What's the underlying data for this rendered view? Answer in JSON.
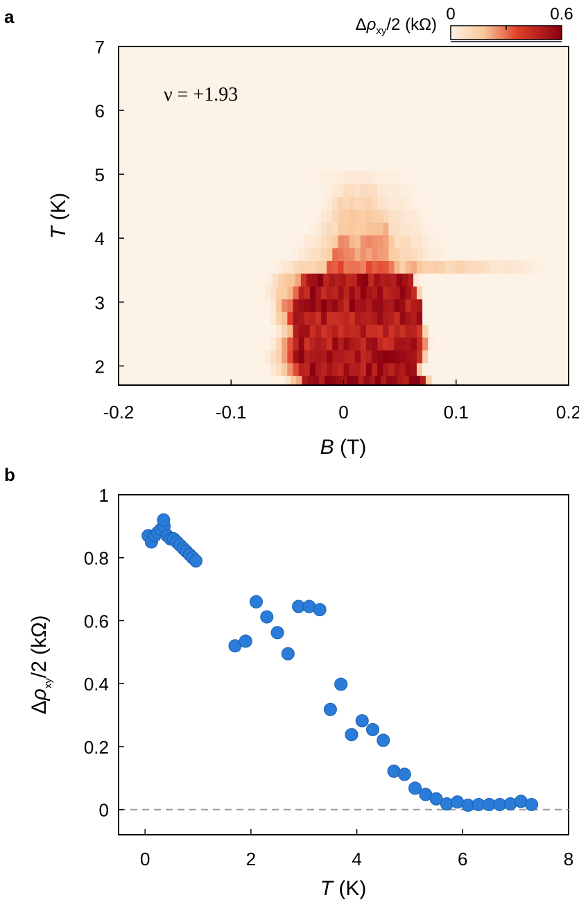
{
  "panel_a": {
    "label": "a"
  },
  "panel_b": {
    "label": "b"
  },
  "colors": {
    "heat_low": "#fdf2e6",
    "heat_mid": "#e0402a",
    "heat_high": "#8a0010",
    "marker": "#2b7bd8",
    "marker_edge": "#1a5fb0",
    "zero_line": "#999999"
  },
  "chart_data": [
    {
      "type": "heatmap",
      "panel": "a",
      "annotation": "ν = +1.93",
      "xlabel_italic": "B",
      "xlabel_unit": "(T)",
      "ylabel_italic": "T",
      "ylabel_unit": "(K)",
      "xlim": [
        -0.2,
        0.2
      ],
      "ylim": [
        1.7,
        7
      ],
      "xticks": [
        -0.2,
        -0.1,
        0,
        0.1,
        0.2
      ],
      "xtick_labels": [
        "-0.2",
        "-0.1",
        "0",
        "0.1",
        "0.2"
      ],
      "yticks": [
        2,
        3,
        4,
        5,
        6,
        7
      ],
      "ytick_labels": [
        "2",
        "3",
        "4",
        "5",
        "6",
        "7"
      ],
      "colorbar": {
        "label_prefix": "Δ",
        "label_symbol": "ρ",
        "label_sub": "xy",
        "label_suffix": "/2 (kΩ)",
        "min": 0,
        "max": 0.6,
        "min_label": "0",
        "max_label": "0.6"
      },
      "rows": [
        {
          "T": 1.75,
          "xmin": -0.052,
          "xmax": 0.078,
          "inner_min": -0.035,
          "inner_max": 0.072,
          "v": 0.55
        },
        {
          "T": 1.95,
          "xmin": -0.065,
          "xmax": 0.072,
          "inner_min": -0.04,
          "inner_max": 0.065,
          "v": 0.5
        },
        {
          "T": 2.15,
          "xmin": -0.07,
          "xmax": 0.075,
          "inner_min": -0.045,
          "inner_max": 0.07,
          "v": 0.5
        },
        {
          "T": 2.35,
          "xmin": -0.065,
          "xmax": 0.078,
          "inner_min": -0.045,
          "inner_max": 0.07,
          "v": 0.48
        },
        {
          "T": 2.55,
          "xmin": -0.06,
          "xmax": 0.075,
          "inner_min": -0.045,
          "inner_max": 0.068,
          "v": 0.47
        },
        {
          "T": 2.75,
          "xmin": -0.065,
          "xmax": 0.072,
          "inner_min": -0.045,
          "inner_max": 0.07,
          "v": 0.48
        },
        {
          "T": 2.95,
          "xmin": -0.065,
          "xmax": 0.072,
          "inner_min": -0.045,
          "inner_max": 0.07,
          "v": 0.5
        },
        {
          "T": 3.15,
          "xmin": -0.07,
          "xmax": 0.07,
          "inner_min": -0.038,
          "inner_max": 0.065,
          "v": 0.5
        },
        {
          "T": 3.35,
          "xmin": -0.068,
          "xmax": 0.065,
          "inner_min": -0.035,
          "inner_max": 0.06,
          "v": 0.52
        },
        {
          "T": 3.55,
          "xmin": -0.06,
          "xmax": 0.18,
          "inner_min": -0.015,
          "inner_max": 0.045,
          "v": 0.3
        },
        {
          "T": 3.75,
          "xmin": -0.045,
          "xmax": 0.09,
          "inner_min": -0.01,
          "inner_max": 0.04,
          "v": 0.25
        },
        {
          "T": 3.95,
          "xmin": -0.04,
          "xmax": 0.085,
          "inner_min": -0.005,
          "inner_max": 0.04,
          "v": 0.22
        },
        {
          "T": 4.15,
          "xmin": -0.03,
          "xmax": 0.08,
          "inner_min": -0.005,
          "inner_max": 0.04,
          "v": 0.18
        },
        {
          "T": 4.35,
          "xmin": -0.025,
          "xmax": 0.075,
          "inner_min": -0.005,
          "inner_max": 0.035,
          "v": 0.15
        },
        {
          "T": 4.55,
          "xmin": -0.02,
          "xmax": 0.07,
          "inner_min": -0.005,
          "inner_max": 0.03,
          "v": 0.12
        },
        {
          "T": 4.75,
          "xmin": -0.02,
          "xmax": 0.065,
          "inner_min": 0.0,
          "inner_max": 0.03,
          "v": 0.08
        },
        {
          "T": 4.95,
          "xmin": -0.03,
          "xmax": 0.06,
          "inner_min": 0.0,
          "inner_max": 0.025,
          "v": 0.04
        }
      ]
    },
    {
      "type": "scatter",
      "panel": "b",
      "xlabel_italic": "T",
      "xlabel_unit": "(K)",
      "ylabel_prefix": "Δ",
      "ylabel_symbol": "ρ",
      "ylabel_sub": "xy",
      "ylabel_suffix": "/2 (kΩ)",
      "xlim": [
        -0.5,
        8
      ],
      "ylim": [
        -0.08,
        1
      ],
      "xticks": [
        0,
        2,
        4,
        6,
        8
      ],
      "xtick_labels": [
        "0",
        "2",
        "4",
        "6",
        "8"
      ],
      "yticks": [
        0,
        0.2,
        0.4,
        0.6,
        0.8,
        1
      ],
      "ytick_labels": [
        "0",
        "0.2",
        "0.4",
        "0.6",
        "0.8",
        "1"
      ],
      "zero_line": true,
      "x": [
        0.06,
        0.12,
        0.18,
        0.24,
        0.3,
        0.36,
        0.42,
        0.48,
        0.54,
        0.6,
        0.66,
        0.72,
        0.78,
        0.84,
        0.9,
        0.96,
        0.35,
        1.7,
        1.9,
        2.1,
        2.3,
        2.5,
        2.7,
        2.9,
        3.1,
        3.3,
        3.5,
        3.7,
        3.9,
        4.1,
        4.3,
        4.5,
        4.7,
        4.9,
        5.1,
        5.3,
        5.5,
        5.7,
        5.9,
        6.1,
        6.3,
        6.5,
        6.7,
        6.9,
        7.1,
        7.3
      ],
      "y": [
        0.87,
        0.85,
        0.87,
        0.88,
        0.89,
        0.9,
        0.87,
        0.86,
        0.86,
        0.85,
        0.84,
        0.83,
        0.82,
        0.81,
        0.8,
        0.79,
        0.92,
        0.52,
        0.535,
        0.66,
        0.612,
        0.562,
        0.495,
        0.645,
        0.645,
        0.635,
        0.318,
        0.398,
        0.238,
        0.282,
        0.254,
        0.22,
        0.122,
        0.112,
        0.068,
        0.048,
        0.034,
        0.018,
        0.024,
        0.014,
        0.016,
        0.016,
        0.016,
        0.018,
        0.026,
        0.016
      ]
    }
  ]
}
